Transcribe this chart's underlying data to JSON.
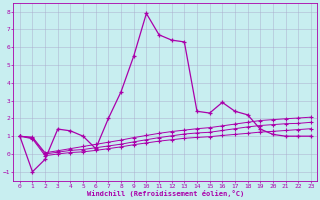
{
  "xlabel": "Windchill (Refroidissement éolien,°C)",
  "background_color": "#c8eef0",
  "line_color": "#aa00aa",
  "grid_color": "#aaaacc",
  "xlim": [
    -0.5,
    23.5
  ],
  "ylim": [
    -1.5,
    8.5
  ],
  "yticks": [
    -1,
    0,
    1,
    2,
    3,
    4,
    5,
    6,
    7,
    8
  ],
  "xticks": [
    0,
    1,
    2,
    3,
    4,
    5,
    6,
    7,
    8,
    9,
    10,
    11,
    12,
    13,
    14,
    15,
    16,
    17,
    18,
    19,
    20,
    21,
    22,
    23
  ],
  "main_x": [
    0,
    1,
    2,
    3,
    4,
    5,
    6,
    7,
    8,
    9,
    10,
    11,
    12,
    13,
    14,
    15,
    16,
    17,
    18,
    19,
    20,
    21,
    22,
    23
  ],
  "main_y": [
    1.0,
    -1.0,
    -0.3,
    1.4,
    1.3,
    1.0,
    0.3,
    2.0,
    3.5,
    5.5,
    7.9,
    6.7,
    6.4,
    6.3,
    2.4,
    2.3,
    2.9,
    2.4,
    2.2,
    1.4,
    1.1,
    1.0,
    1.0,
    1.0
  ],
  "line2_x": [
    0,
    1,
    2,
    3,
    4,
    5,
    6,
    7,
    8,
    9,
    10,
    11,
    12,
    13,
    14,
    15,
    16,
    17,
    18,
    19,
    20,
    21,
    22,
    23
  ],
  "line2_y": [
    1.0,
    0.9,
    0.0,
    0.1,
    0.2,
    0.25,
    0.35,
    0.45,
    0.55,
    0.68,
    0.8,
    0.92,
    1.02,
    1.12,
    1.18,
    1.22,
    1.32,
    1.42,
    1.52,
    1.6,
    1.65,
    1.7,
    1.72,
    1.78
  ],
  "line3_x": [
    0,
    1,
    2,
    3,
    4,
    5,
    6,
    7,
    8,
    9,
    10,
    11,
    12,
    13,
    14,
    15,
    16,
    17,
    18,
    19,
    20,
    21,
    22,
    23
  ],
  "line3_y": [
    1.0,
    0.95,
    0.07,
    0.18,
    0.3,
    0.42,
    0.54,
    0.66,
    0.78,
    0.92,
    1.04,
    1.16,
    1.26,
    1.34,
    1.42,
    1.48,
    1.58,
    1.68,
    1.78,
    1.88,
    1.93,
    1.98,
    2.02,
    2.07
  ],
  "line4_x": [
    0,
    1,
    2,
    3,
    4,
    5,
    6,
    7,
    8,
    9,
    10,
    11,
    12,
    13,
    14,
    15,
    16,
    17,
    18,
    19,
    20,
    21,
    22,
    23
  ],
  "line4_y": [
    1.0,
    0.85,
    -0.1,
    0.0,
    0.08,
    0.12,
    0.2,
    0.3,
    0.4,
    0.52,
    0.62,
    0.72,
    0.8,
    0.88,
    0.93,
    0.97,
    1.04,
    1.1,
    1.16,
    1.23,
    1.27,
    1.32,
    1.37,
    1.42
  ]
}
